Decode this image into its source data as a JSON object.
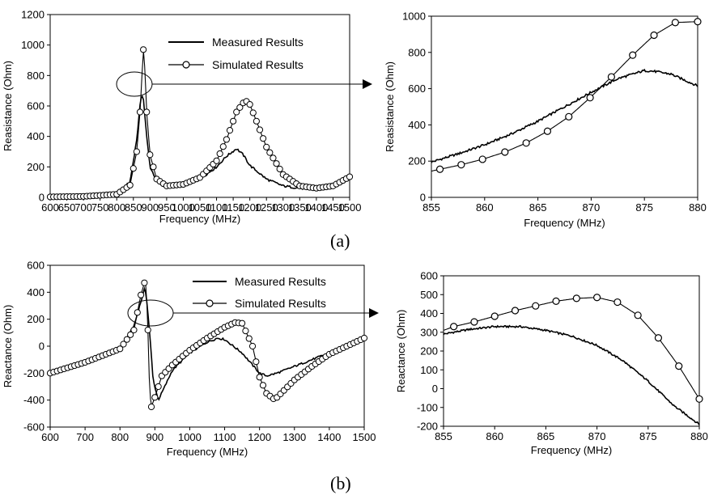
{
  "captions": [
    "(a)",
    "(b)"
  ],
  "legend": {
    "measured": "Measured Results",
    "simulated": "Simulated Results"
  },
  "chart_data": [
    {
      "id": "a-left",
      "type": "line",
      "xlabel": "Frequency (MHz)",
      "ylabel": "Reasistance (Ohm)",
      "xlim": [
        600,
        1500
      ],
      "ylim": [
        0,
        1200
      ],
      "xticks": [
        600,
        650,
        700,
        750,
        800,
        850,
        900,
        950,
        1000,
        1050,
        1100,
        1150,
        1200,
        1250,
        1300,
        1350,
        1400,
        1450,
        1500
      ],
      "yticks": [
        0,
        200,
        400,
        600,
        800,
        1000,
        1200
      ],
      "legend": "top-right",
      "series": [
        {
          "name": "Measured Results",
          "marker": "none",
          "x": [
            600,
            700,
            800,
            840,
            860,
            870,
            875,
            880,
            890,
            900,
            920,
            950,
            1000,
            1050,
            1100,
            1130,
            1160,
            1180,
            1200,
            1250,
            1300,
            1350,
            1400,
            1450,
            1500
          ],
          "y": [
            4,
            8,
            25,
            100,
            380,
            600,
            680,
            650,
            400,
            200,
            110,
            75,
            85,
            120,
            200,
            270,
            320,
            280,
            210,
            120,
            75,
            60,
            60,
            85,
            145
          ]
        },
        {
          "name": "Simulated Results",
          "marker": "circle",
          "x": [
            600,
            700,
            800,
            840,
            860,
            870,
            875,
            880,
            885,
            890,
            900,
            920,
            950,
            1000,
            1050,
            1100,
            1130,
            1160,
            1180,
            1190,
            1200,
            1220,
            1250,
            1300,
            1350,
            1400,
            1450,
            1500
          ],
          "y": [
            3,
            6,
            20,
            80,
            300,
            560,
            760,
            970,
            830,
            560,
            280,
            120,
            75,
            85,
            130,
            240,
            380,
            560,
            620,
            630,
            610,
            500,
            330,
            150,
            75,
            60,
            75,
            135
          ]
        }
      ]
    },
    {
      "id": "a-right",
      "type": "line",
      "xlabel": "Frequency (MHz)",
      "ylabel": "Reasistance (Ohm)",
      "xlim": [
        855,
        880
      ],
      "ylim": [
        0,
        1000
      ],
      "xticks": [
        855,
        860,
        865,
        870,
        875,
        880
      ],
      "yticks": [
        0,
        200,
        400,
        600,
        800,
        1000
      ],
      "series": [
        {
          "name": "Measured Results",
          "marker": "none",
          "x": [
            855,
            857.5,
            860,
            862.5,
            865,
            867.5,
            870,
            872.5,
            875,
            876,
            877.5,
            880
          ],
          "y": [
            195,
            240,
            290,
            350,
            420,
            500,
            580,
            655,
            700,
            695,
            680,
            615
          ]
        },
        {
          "name": "Simulated Results",
          "marker": "circle",
          "x": [
            855,
            855.8,
            857.8,
            859.8,
            861.9,
            863.9,
            865.9,
            867.9,
            869.9,
            871.9,
            873.9,
            875.9,
            877.9,
            880
          ],
          "y": [
            145,
            155,
            180,
            210,
            250,
            300,
            365,
            445,
            550,
            665,
            785,
            895,
            965,
            970
          ]
        }
      ]
    },
    {
      "id": "b-left",
      "type": "line",
      "xlabel": "Frequency (MHz)",
      "ylabel": "Reactance (Ohm)",
      "xlim": [
        600,
        1500
      ],
      "ylim": [
        -600,
        600
      ],
      "xticks": [
        600,
        700,
        800,
        900,
        1000,
        1100,
        1200,
        1300,
        1400,
        1500
      ],
      "yticks": [
        -600,
        -400,
        -200,
        0,
        200,
        400,
        600
      ],
      "legend": "top-right",
      "series": [
        {
          "name": "Measured Results",
          "marker": "none",
          "x": [
            600,
            700,
            800,
            840,
            860,
            870,
            875,
            885,
            895,
            910,
            950,
            1000,
            1050,
            1080,
            1100,
            1150,
            1200,
            1220,
            1250,
            1300,
            1350,
            1400,
            1450,
            1500
          ],
          "y": [
            -200,
            -120,
            -20,
            150,
            330,
            420,
            390,
            100,
            -250,
            -400,
            -180,
            -50,
            30,
            60,
            50,
            -50,
            -200,
            -220,
            -200,
            -150,
            -100,
            -50,
            0,
            60
          ]
        },
        {
          "name": "Simulated Results",
          "marker": "circle",
          "x": [
            600,
            700,
            800,
            840,
            860,
            870,
            875,
            880,
            885,
            890,
            900,
            920,
            950,
            1000,
            1050,
            1100,
            1130,
            1150,
            1180,
            1200,
            1220,
            1240,
            1250,
            1300,
            1350,
            1400,
            1450,
            1500
          ],
          "y": [
            -200,
            -120,
            -20,
            120,
            380,
            470,
            460,
            120,
            -340,
            -450,
            -380,
            -220,
            -140,
            -30,
            60,
            140,
            175,
            170,
            0,
            -230,
            -350,
            -390,
            -380,
            -250,
            -150,
            -60,
            0,
            60
          ]
        }
      ]
    },
    {
      "id": "b-right",
      "type": "line",
      "xlabel": "Frequency (MHz)",
      "ylabel": "Reactance (Ohm)",
      "xlim": [
        855,
        880
      ],
      "ylim": [
        -200,
        600
      ],
      "xticks": [
        855,
        860,
        865,
        870,
        875,
        880
      ],
      "yticks": [
        -200,
        -100,
        0,
        100,
        200,
        300,
        400,
        500,
        600
      ],
      "series": [
        {
          "name": "Measured Results",
          "marker": "none",
          "x": [
            855,
            857.5,
            860,
            862.5,
            865,
            867.5,
            870,
            872.5,
            875,
            877.5,
            880
          ],
          "y": [
            290,
            315,
            330,
            330,
            310,
            280,
            230,
            150,
            40,
            -90,
            -190
          ]
        },
        {
          "name": "Simulated Results",
          "marker": "circle",
          "x": [
            855,
            856,
            858,
            860,
            862,
            864,
            866,
            868,
            870,
            872,
            874,
            876,
            878,
            880
          ],
          "y": [
            310,
            330,
            355,
            385,
            415,
            440,
            465,
            480,
            485,
            460,
            390,
            270,
            120,
            -55
          ]
        }
      ]
    }
  ]
}
